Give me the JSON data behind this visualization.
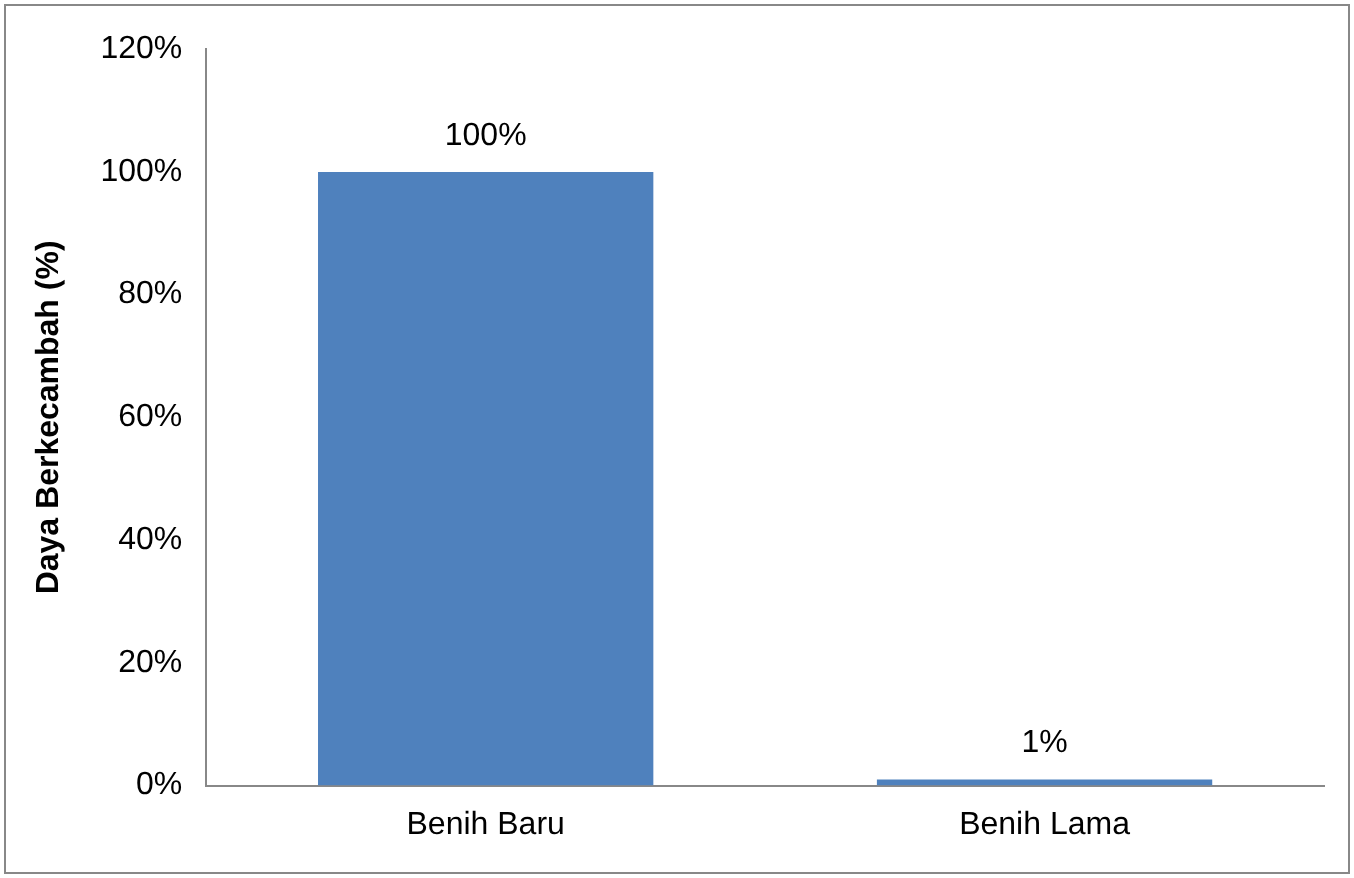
{
  "chart_data": {
    "type": "bar",
    "ylabel": "Daya Berkecambah (%)",
    "categories": [
      "Benih Baru",
      "Benih Lama"
    ],
    "values": [
      100,
      1
    ],
    "color": "#4f81bd",
    "value_labels": [
      "100%",
      "1%"
    ],
    "ylim": [
      0,
      120
    ],
    "yticks": [
      {
        "value": 0,
        "label": "0%"
      },
      {
        "value": 20,
        "label": "20%"
      },
      {
        "value": 40,
        "label": "40%"
      },
      {
        "value": 60,
        "label": "60%"
      },
      {
        "value": 80,
        "label": "80%"
      },
      {
        "value": 100,
        "label": "100%"
      },
      {
        "value": 120,
        "label": "120%"
      }
    ],
    "grid": false,
    "legend": false
  }
}
